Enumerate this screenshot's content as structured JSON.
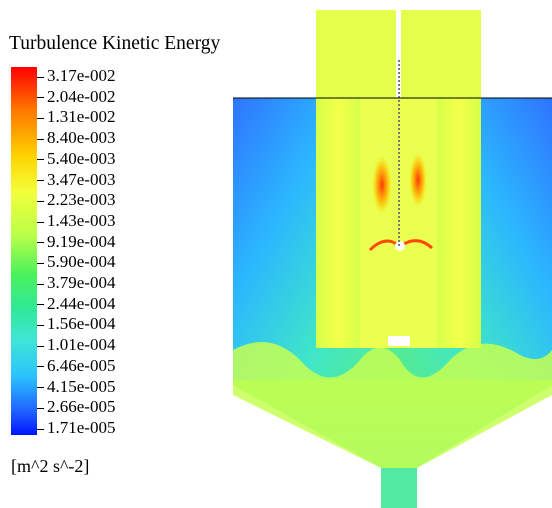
{
  "legend": {
    "title": "Turbulence Kinetic Energy",
    "units": "[m^2 s^-2]",
    "ticks": [
      "3.17e-002",
      "2.04e-002",
      "1.31e-002",
      "8.40e-003",
      "5.40e-003",
      "3.47e-003",
      "2.23e-003",
      "1.43e-003",
      "9.19e-004",
      "5.90e-004",
      "3.79e-004",
      "2.44e-004",
      "1.56e-004",
      "1.01e-004",
      "6.46e-005",
      "4.15e-005",
      "2.66e-005",
      "1.71e-005"
    ],
    "colormap": [
      "#ff0000",
      "#ff7a00",
      "#ffd200",
      "#f2ff3a",
      "#b8ff4a",
      "#4cf25a",
      "#2fe89a",
      "#3fe6d6",
      "#2bc3ff",
      "#1f5cff",
      "#0014ff"
    ]
  }
}
